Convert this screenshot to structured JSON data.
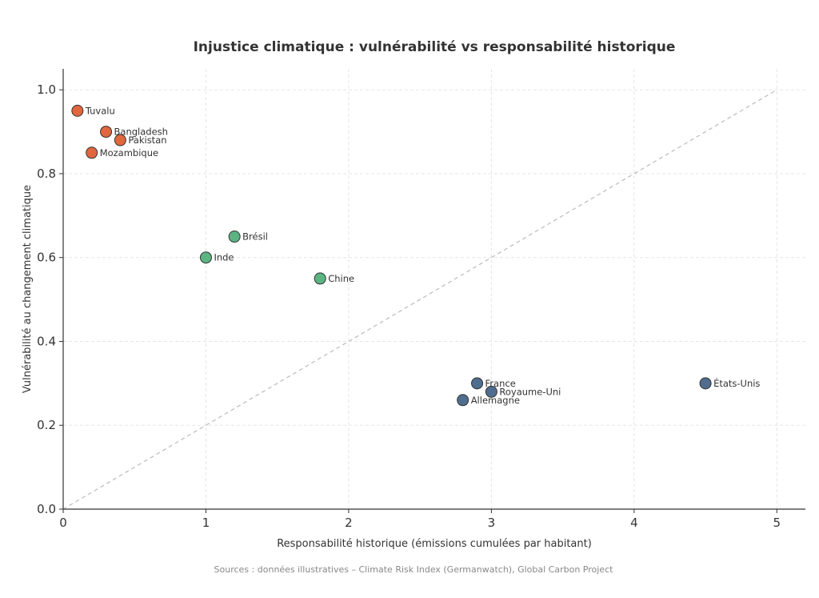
{
  "chart_data": {
    "type": "scatter",
    "title": "Injustice climatique : vulnérabilité vs responsabilité historique",
    "xlabel": "Responsabilité historique (émissions cumulées par habitant)",
    "ylabel": "Vulnérabilité au changement climatique",
    "xlim": [
      0,
      5.2
    ],
    "ylim": [
      0,
      1.05
    ],
    "xticks": [
      0,
      1,
      2,
      3,
      4,
      5
    ],
    "xtick_labels": [
      "0",
      "1",
      "2",
      "3",
      "4",
      "5"
    ],
    "yticks": [
      0,
      0.2,
      0.4,
      0.6,
      0.8,
      1.0
    ],
    "ytick_labels": [
      "0.0",
      "0.2",
      "0.4",
      "0.6",
      "0.8",
      "1.0"
    ],
    "grid": true,
    "reference_line": {
      "from": [
        0,
        0
      ],
      "to": [
        5,
        1
      ],
      "style": "dashed",
      "color": "#bbbbbb"
    },
    "colors": {
      "vulnerable": "#e0673e",
      "emerging": "#5cb482",
      "developed": "#4f6d8f"
    },
    "points": [
      {
        "label": "Tuvalu",
        "x": 0.1,
        "y": 0.95,
        "group": "vulnerable"
      },
      {
        "label": "Bangladesh",
        "x": 0.3,
        "y": 0.9,
        "group": "vulnerable"
      },
      {
        "label": "Pakistan",
        "x": 0.4,
        "y": 0.88,
        "group": "vulnerable"
      },
      {
        "label": "Mozambique",
        "x": 0.2,
        "y": 0.85,
        "group": "vulnerable"
      },
      {
        "label": "Brésil",
        "x": 1.2,
        "y": 0.65,
        "group": "emerging"
      },
      {
        "label": "Inde",
        "x": 1.0,
        "y": 0.6,
        "group": "emerging"
      },
      {
        "label": "Chine",
        "x": 1.8,
        "y": 0.55,
        "group": "emerging"
      },
      {
        "label": "France",
        "x": 2.9,
        "y": 0.3,
        "group": "developed"
      },
      {
        "label": "Royaume-Uni",
        "x": 3.0,
        "y": 0.28,
        "group": "developed"
      },
      {
        "label": "Allemagne",
        "x": 2.8,
        "y": 0.26,
        "group": "developed"
      },
      {
        "label": "États-Unis",
        "x": 4.5,
        "y": 0.3,
        "group": "developed"
      }
    ],
    "source": "Sources : données illustratives – Climate Risk Index (Germanwatch), Global Carbon Project"
  }
}
